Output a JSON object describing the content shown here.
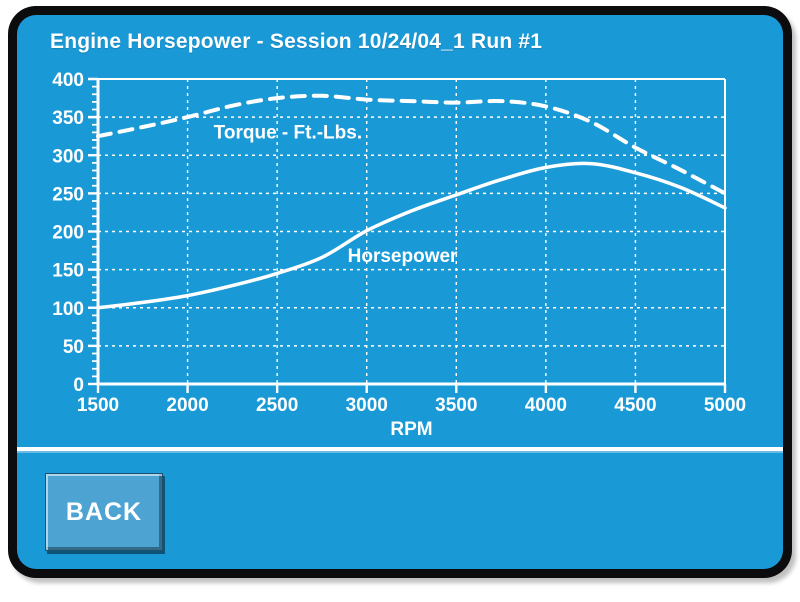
{
  "header": {
    "title": "Engine Horsepower - Session 10/24/04_1 Run #1"
  },
  "chart_data": {
    "type": "line",
    "title": "Engine Horsepower - Session 10/24/04_1 Run #1",
    "xlabel": "RPM",
    "ylabel": "",
    "xlim": [
      1500,
      5000
    ],
    "ylim": [
      0,
      400
    ],
    "x_ticks": [
      1500,
      2000,
      2500,
      3000,
      3500,
      4000,
      4500,
      5000
    ],
    "y_ticks": [
      0,
      50,
      100,
      150,
      200,
      250,
      300,
      350,
      400
    ],
    "y_minor_step": 10,
    "grid": true,
    "grid_style": "dashed",
    "legend_position": "inline-labels",
    "x": [
      1500,
      1750,
      2000,
      2250,
      2500,
      2750,
      3000,
      3250,
      3500,
      3750,
      4000,
      4250,
      4500,
      4750,
      5000
    ],
    "series": [
      {
        "name": "Torque - Ft.-Lbs.",
        "style": "dashed",
        "values": [
          325,
          337,
          350,
          365,
          375,
          378,
          373,
          371,
          369,
          371,
          364,
          344,
          310,
          281,
          250
        ],
        "label": "Torque - Ft.-Lbs.",
        "label_pos": {
          "rpm": 2560,
          "value": 330
        }
      },
      {
        "name": "Horsepower",
        "style": "solid",
        "values": [
          100,
          107,
          116,
          129,
          145,
          166,
          201,
          227,
          248,
          268,
          284,
          289,
          277,
          258,
          231
        ],
        "label": "Horsepower",
        "label_pos": {
          "rpm": 3200,
          "value": 168
        }
      }
    ]
  },
  "footer": {
    "back_label": "BACK"
  },
  "colors": {
    "screen_background": "#1a99d7",
    "frame": "#0c0c0e",
    "grid_and_text": "#ffffff",
    "curve": "#ffffff",
    "back_button": "#4da4d3"
  }
}
